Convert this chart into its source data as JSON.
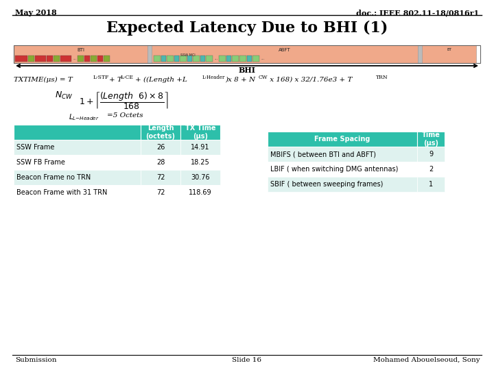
{
  "header_left": "May 2018",
  "header_right": "doc.: IEEE 802.11-18/0816r1",
  "title": "Expected Latency Due to BHI (1)",
  "bhi_label": "BHI",
  "table1_header_color": "#2dbfaa",
  "table1_row_even_color": "#dff2ef",
  "table1_row_odd_color": "#ffffff",
  "table1_headers": [
    "",
    "Length\n(octets)",
    "TX Time\n(μs)"
  ],
  "table1_rows": [
    [
      "SSW Frame",
      "26",
      "14.91"
    ],
    [
      "SSW FB Frame",
      "28",
      "18.25"
    ],
    [
      "Beacon Frame no TRN",
      "72",
      "30.76"
    ],
    [
      "Beacon Frame with 31 TRN",
      "72",
      "118.69"
    ]
  ],
  "table2_header_color": "#2dbfaa",
  "table2_row_even_color": "#dff2ef",
  "table2_row_odd_color": "#ffffff",
  "table2_headers": [
    "Frame Spacing",
    "Time\n(μs)"
  ],
  "table2_rows": [
    [
      "MBIFS ( between BTI and ABFT)",
      "9"
    ],
    [
      "LBIF ( when switching DMG antennas)",
      "2"
    ],
    [
      "SBIF ( between sweeping frames)",
      "1"
    ]
  ],
  "footer_left": "Submission",
  "footer_center": "Slide 16",
  "footer_right": "Mohamed Abouelseoud, Sony",
  "bg_color": "#ffffff"
}
